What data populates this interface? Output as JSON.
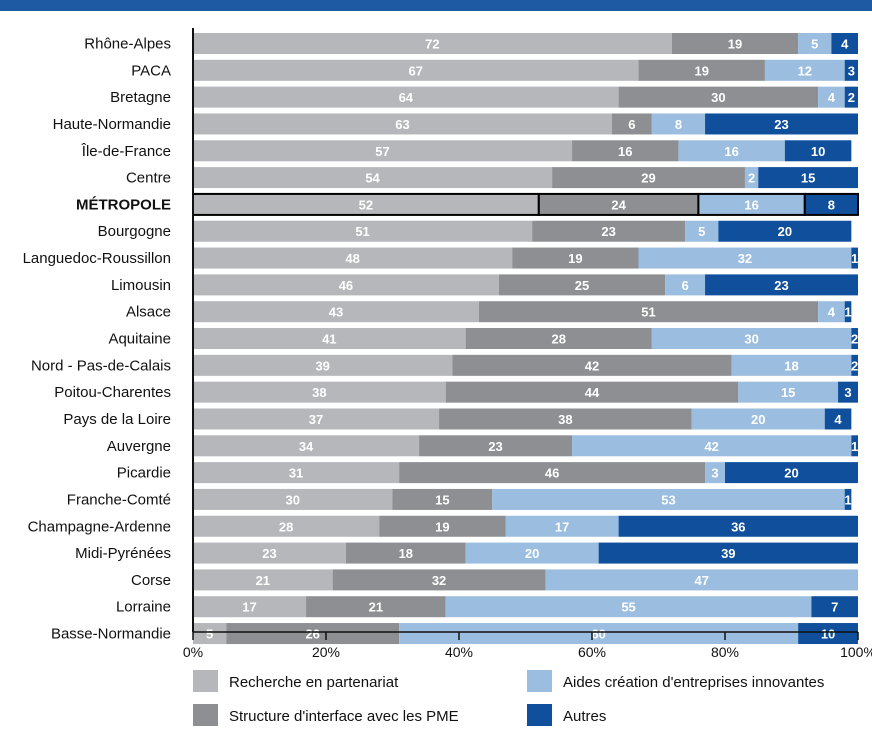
{
  "chart_data": {
    "type": "bar",
    "orientation": "horizontal",
    "stacked": true,
    "highlighted_category": "MÉTROPOLE",
    "categories": [
      "Rhône-Alpes",
      "PACA",
      "Bretagne",
      "Haute-Normandie",
      "Île-de-France",
      "Centre",
      "MÉTROPOLE",
      "Bourgogne",
      "Languedoc-Roussillon",
      "Limousin",
      "Alsace",
      "Aquitaine",
      "Nord - Pas-de-Calais",
      "Poitou-Charentes",
      "Pays de la Loire",
      "Auvergne",
      "Picardie",
      "Franche-Comté",
      "Champagne-Ardenne",
      "Midi-Pyrénées",
      "Corse",
      "Lorraine",
      "Basse-Normandie"
    ],
    "series": [
      {
        "name": "Recherche en partenariat",
        "color": "#b5b7ba",
        "values": [
          72,
          67,
          64,
          63,
          57,
          54,
          52,
          51,
          48,
          46,
          43,
          41,
          39,
          38,
          37,
          34,
          31,
          30,
          28,
          23,
          21,
          17,
          5
        ]
      },
      {
        "name": "Structure d'interface avec les PME",
        "color": "#8d8f92",
        "values": [
          19,
          19,
          30,
          6,
          16,
          29,
          24,
          23,
          19,
          25,
          51,
          28,
          42,
          44,
          38,
          23,
          46,
          15,
          19,
          18,
          32,
          21,
          26
        ]
      },
      {
        "name": "Aides création d'entreprises innovantes",
        "color": "#9bbde0",
        "values": [
          5,
          12,
          4,
          8,
          16,
          2,
          16,
          5,
          32,
          6,
          4,
          30,
          18,
          15,
          20,
          42,
          3,
          53,
          17,
          20,
          47,
          55,
          60
        ]
      },
      {
        "name": "Autres",
        "color": "#0f4f9c",
        "values": [
          4,
          3,
          2,
          23,
          10,
          15,
          8,
          20,
          1,
          23,
          1,
          2,
          2,
          3,
          4,
          1,
          20,
          1,
          36,
          39,
          0,
          7,
          10
        ]
      }
    ],
    "xlim": [
      0,
      100
    ],
    "x_ticks": [
      "0%",
      "20%",
      "40%",
      "60%",
      "80%",
      "100%"
    ],
    "xlabel": "",
    "ylabel": "",
    "grid": false,
    "legend_position": "bottom"
  }
}
